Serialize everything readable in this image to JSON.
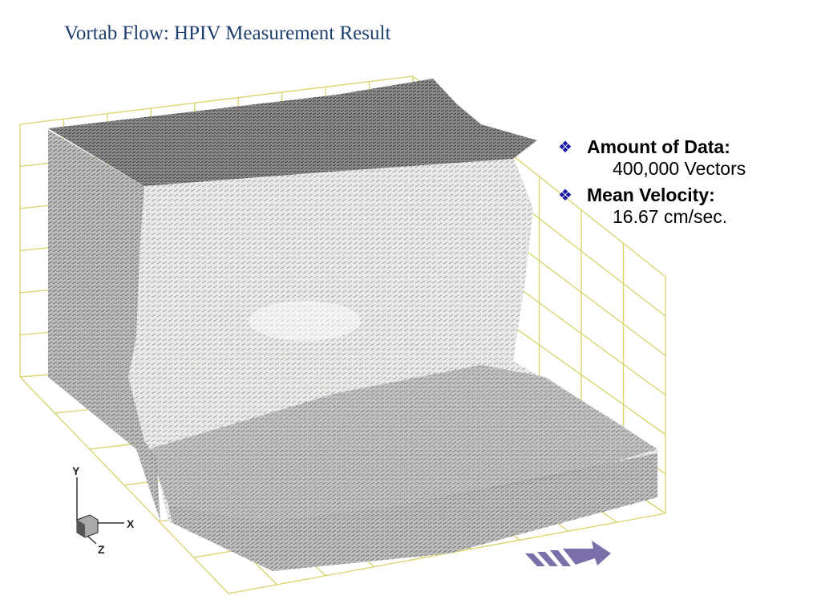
{
  "header": {
    "title": "Vortab Flow: HPIV Measurement Result"
  },
  "bullets": [
    {
      "label": "Amount of Data:",
      "value": "400,000 Vectors"
    },
    {
      "label": "Mean Velocity:",
      "value": "16.67 cm/sec."
    }
  ],
  "axes": {
    "y": "Y",
    "x": "X",
    "z": "Z"
  }
}
